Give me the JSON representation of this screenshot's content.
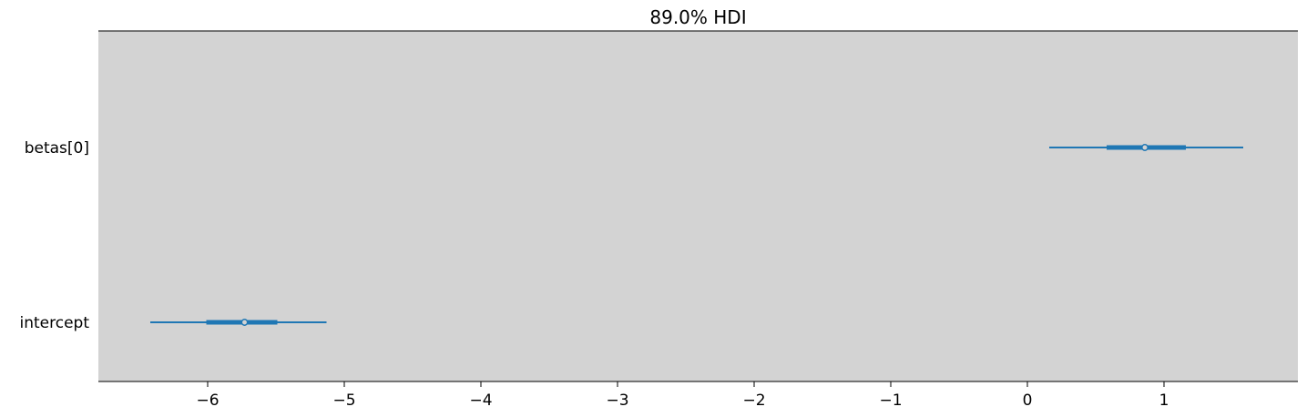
{
  "chart_data": {
    "type": "forest",
    "title": "89.0% HDI",
    "xlim": [
      -6.8,
      1.98
    ],
    "x_ticks": [
      -6,
      -5,
      -4,
      -3,
      -2,
      -1,
      0,
      1
    ],
    "x_tick_labels": [
      "−6",
      "−5",
      "−4",
      "−3",
      "−2",
      "−1",
      "0",
      "1"
    ],
    "grid": false,
    "colors": {
      "plot_background": "#d3d3d3",
      "series": "#1f77b4",
      "marker_fill": "#d3d3d3"
    },
    "rows": [
      {
        "label": "betas[0]",
        "hdi_89": [
          0.16,
          1.58
        ],
        "hdi_50": [
          0.58,
          1.16
        ],
        "point": 0.86
      },
      {
        "label": "intercept",
        "hdi_89": [
          -6.42,
          -5.13
        ],
        "hdi_50": [
          -6.01,
          -5.49
        ],
        "point": -5.73
      }
    ]
  }
}
